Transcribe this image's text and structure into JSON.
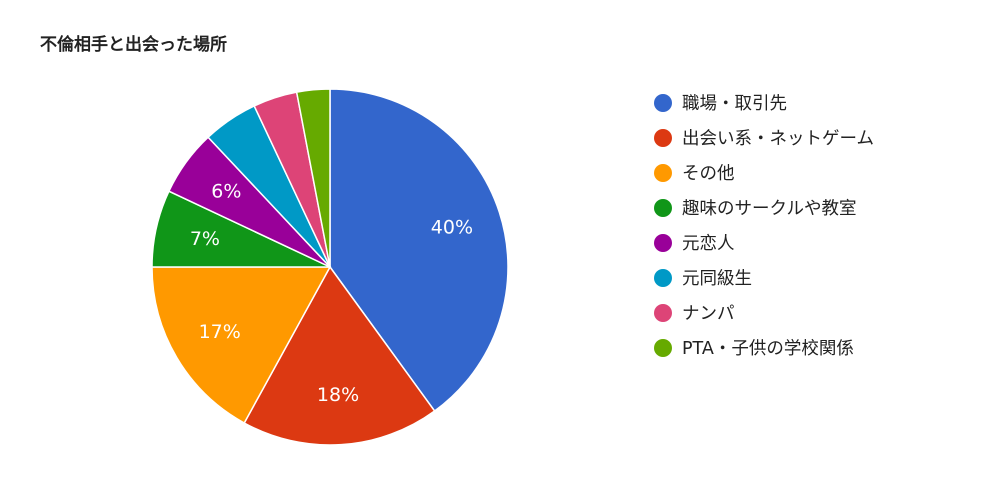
{
  "chart_data": {
    "type": "pie",
    "title": "不倫相手と出会った場所",
    "legend_position": "right",
    "slices": [
      {
        "label": "職場・取引先",
        "value": 40,
        "display": "40%",
        "color": "#3366cc"
      },
      {
        "label": "出会い系・ネットゲーム",
        "value": 18,
        "display": "18%",
        "color": "#dc3912"
      },
      {
        "label": "その他",
        "value": 17,
        "display": "17%",
        "color": "#ff9900"
      },
      {
        "label": "趣味のサークルや教室",
        "value": 7,
        "display": "7%",
        "color": "#109618"
      },
      {
        "label": "元恋人",
        "value": 6,
        "display": "6%",
        "color": "#990099"
      },
      {
        "label": "元同級生",
        "value": 5,
        "display": "",
        "color": "#0099c6"
      },
      {
        "label": "ナンパ",
        "value": 4,
        "display": "",
        "color": "#dd4477"
      },
      {
        "label": "PTA・子供の学校関係",
        "value": 3,
        "display": "",
        "color": "#66aa00"
      }
    ]
  }
}
